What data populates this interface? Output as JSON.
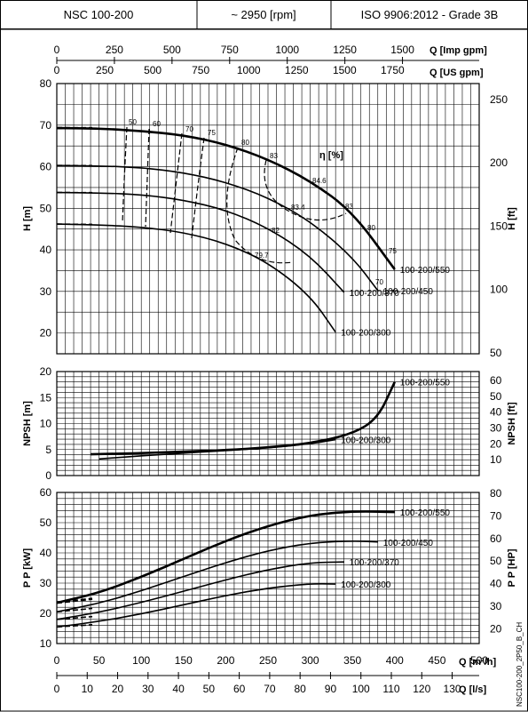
{
  "header": {
    "model": "NSC 100-200",
    "speed": "~ 2950 [rpm]",
    "standard": "ISO 9906:2012 - Grade 3B"
  },
  "top_axes": {
    "imp_gpm_label": "Q [Imp gpm]",
    "imp_gpm_ticks": [
      "0",
      "250",
      "500",
      "750",
      "1000",
      "1250",
      "1500"
    ],
    "us_gpm_label": "Q [US gpm]",
    "us_gpm_ticks": [
      "0",
      "250",
      "500",
      "750",
      "1000",
      "1250",
      "1500",
      "1750"
    ]
  },
  "bottom_axes": {
    "m3h_label": "Q [m³/h]",
    "m3h_ticks": [
      "0",
      "50",
      "100",
      "150",
      "200",
      "250",
      "300",
      "350",
      "400",
      "450",
      "500"
    ],
    "ls_label": "Q [l/s]",
    "ls_ticks": [
      "0",
      "10",
      "20",
      "30",
      "40",
      "50",
      "60",
      "70",
      "80",
      "90",
      "100",
      "110",
      "120",
      "130"
    ]
  },
  "side_note": "NSC100-200_2P50_B_CH",
  "chart_data": [
    {
      "type": "line",
      "panel": "head",
      "ylabel_left": "H [m]",
      "ylabel_right": "H [ft]",
      "xlim": [
        0,
        500
      ],
      "ylim": [
        15,
        80
      ],
      "left_ticks": [
        "20",
        "30",
        "40",
        "50",
        "60",
        "70",
        "80"
      ],
      "right_ticks": [
        "50",
        "100",
        "150",
        "200",
        "250"
      ],
      "grid": true,
      "eff_label": "η [%]",
      "series": [
        {
          "name": "100-200/550",
          "x": [
            0,
            50,
            100,
            150,
            200,
            250,
            300,
            350,
            400
          ],
          "y": [
            69.3,
            69.2,
            68.6,
            67.6,
            65.4,
            61.8,
            56.6,
            49.2,
            35.3
          ]
        },
        {
          "name": "100-200/450",
          "x": [
            0,
            50,
            100,
            150,
            200,
            250,
            300,
            350,
            380
          ],
          "y": [
            60.3,
            60.2,
            59.8,
            58.6,
            56.3,
            52.6,
            46.9,
            38.3,
            30.2
          ]
        },
        {
          "name": "100-200/370",
          "x": [
            0,
            50,
            100,
            150,
            200,
            250,
            300,
            340
          ],
          "y": [
            53.8,
            53.7,
            53.3,
            52.0,
            49.6,
            45.3,
            38.6,
            29.8
          ]
        },
        {
          "name": "100-200/300",
          "x": [
            0,
            50,
            100,
            150,
            200,
            250,
            300,
            330
          ],
          "y": [
            46.2,
            46.0,
            45.5,
            44.2,
            41.6,
            37.0,
            29.0,
            20.2
          ]
        }
      ],
      "efficiency_labels": [
        "50",
        "60",
        "70",
        "75",
        "80",
        "83",
        "84.6",
        "83.4",
        "83",
        "82",
        "80",
        "79.7",
        "75",
        "70"
      ]
    },
    {
      "type": "line",
      "panel": "npsh",
      "ylabel_left": "NPSH [m]",
      "ylabel_right": "NPSH [ft]",
      "xlim": [
        0,
        500
      ],
      "ylim": [
        0,
        20
      ],
      "left_ticks": [
        "0",
        "5",
        "10",
        "15",
        "20"
      ],
      "right_ticks": [
        "10",
        "20",
        "30",
        "40",
        "50",
        "60"
      ],
      "grid": true,
      "series": [
        {
          "name": "100-200/550",
          "x": [
            40,
            100,
            150,
            200,
            250,
            300,
            350,
            380,
            400
          ],
          "y": [
            4.1,
            4.3,
            4.6,
            4.9,
            5.4,
            6.2,
            8.0,
            11.0,
            18.0
          ]
        },
        {
          "name": "100-200/300",
          "x": [
            50,
            100,
            150,
            200,
            250,
            300,
            330
          ],
          "y": [
            3.2,
            3.8,
            4.3,
            4.8,
            5.3,
            6.1,
            6.9
          ]
        }
      ]
    },
    {
      "type": "line",
      "panel": "power",
      "ylabel_left": "P P [kW]",
      "ylabel_right": "P P [HP]",
      "xlim": [
        0,
        500
      ],
      "ylim": [
        10,
        60
      ],
      "left_ticks": [
        "10",
        "20",
        "30",
        "40",
        "50",
        "60"
      ],
      "right_ticks": [
        "20",
        "30",
        "40",
        "50",
        "60",
        "70",
        "80"
      ],
      "grid": true,
      "series": [
        {
          "name": "100-200/550",
          "x": [
            0,
            50,
            100,
            150,
            200,
            250,
            300,
            350,
            400
          ],
          "y": [
            23.5,
            26.8,
            32.0,
            38.0,
            44.0,
            49.0,
            52.5,
            53.8,
            53.5
          ]
        },
        {
          "name": "100-200/450",
          "x": [
            0,
            50,
            100,
            150,
            200,
            250,
            300,
            350,
            380
          ],
          "y": [
            20.5,
            23.3,
            27.4,
            32.2,
            36.8,
            40.8,
            43.3,
            44.0,
            43.6
          ]
        },
        {
          "name": "100-200/370",
          "x": [
            0,
            50,
            100,
            150,
            200,
            250,
            300,
            340
          ],
          "y": [
            18.0,
            20.3,
            23.6,
            27.3,
            31.1,
            34.5,
            36.8,
            37.0
          ]
        },
        {
          "name": "100-200/300",
          "x": [
            0,
            50,
            100,
            150,
            200,
            250,
            300,
            330
          ],
          "y": [
            15.5,
            17.3,
            19.8,
            22.8,
            25.9,
            28.4,
            29.8,
            29.7
          ]
        }
      ]
    }
  ]
}
